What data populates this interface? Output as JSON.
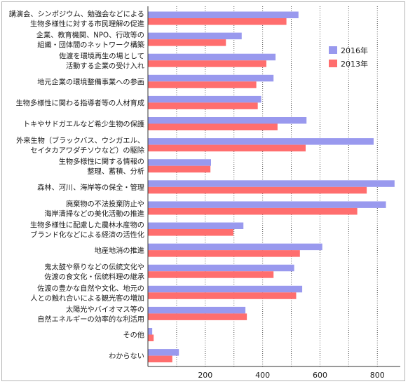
{
  "chart_data": {
    "type": "bar",
    "orientation": "horizontal",
    "categories": [
      [
        "講演会、シンポジウム、勉強会などによる",
        "生物多様性に対する市民理解の促進"
      ],
      [
        "企業、教育機関、NPO、行政等の",
        "組織・団体間のネットワーク構築"
      ],
      [
        "佐渡を環境再生の場として",
        "活動する企業の受け入れ"
      ],
      [
        "地元企業の環境整備事業への参画"
      ],
      [
        "生物多様性に関わる指導者等の人材育成"
      ],
      [
        "トキやサドガエルなど希少生物の保護"
      ],
      [
        "外来生物（ブラックバス、ウシガエル、",
        "セイタカアワダチソウなど）の駆除"
      ],
      [
        "生物多様性に関する情報の",
        "整理、蓄積、分析"
      ],
      [
        "森林、河川、海岸等の保全・管理"
      ],
      [
        "廃棄物の不法投棄防止や",
        "海岸清掃などの美化活動の推進"
      ],
      [
        "生物多様性に配慮した農林水産物の",
        "ブランド化などによる経済の活性化"
      ],
      [
        "地産地消の推進"
      ],
      [
        "鬼太鼓や祭りなどの伝統文化や",
        "佐渡の食文化・伝統料理の継承"
      ],
      [
        "佐渡の豊かな自然や文化、地元の",
        "人との触れ合いによる観光客の増加"
      ],
      [
        "太陽光やバイオマス等の",
        "自然エネルギーの効率的な利活用"
      ],
      [
        "その他"
      ],
      [
        "わからない"
      ]
    ],
    "series": [
      {
        "name": "2016年",
        "color": "#9999ee",
        "values": [
          525,
          327,
          445,
          438,
          395,
          553,
          787,
          220,
          860,
          830,
          333,
          608,
          510,
          538,
          340,
          15,
          108
        ]
      },
      {
        "name": "2013年",
        "color": "#ff6e6e",
        "values": [
          483,
          272,
          413,
          378,
          383,
          452,
          550,
          218,
          763,
          730,
          298,
          530,
          438,
          517,
          345,
          20,
          85
        ]
      }
    ],
    "xticks": [
      200,
      400,
      600,
      800
    ],
    "xlim": [
      0,
      880
    ],
    "grid": "vertical dotted",
    "legend_position": "right"
  }
}
